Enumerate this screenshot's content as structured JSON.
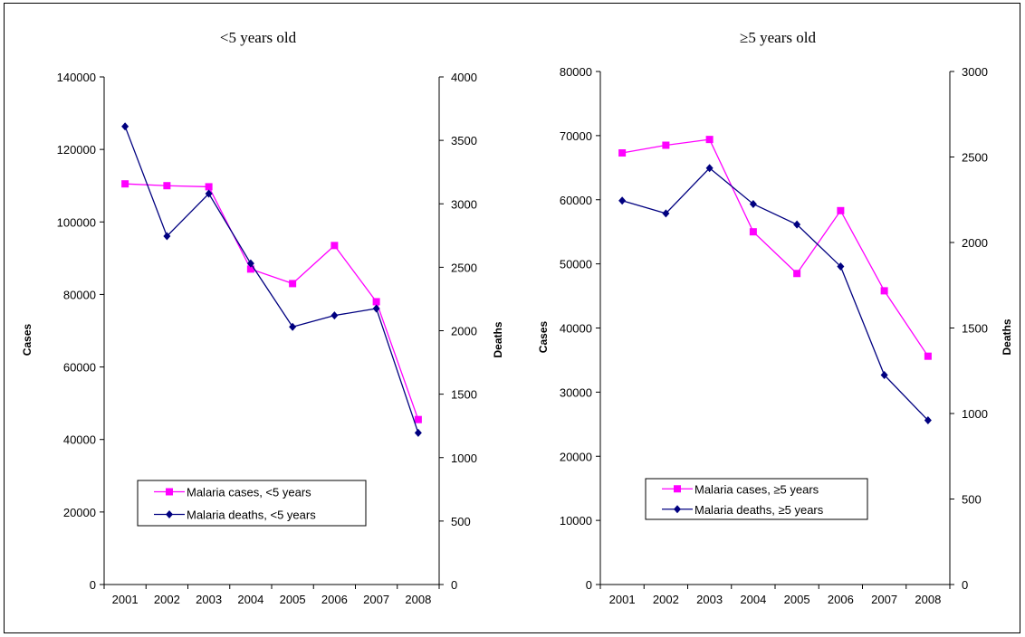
{
  "colors": {
    "cases": "#ff00ff",
    "deaths": "#000080"
  },
  "chart_data": [
    {
      "type": "line",
      "title": "<5 years old",
      "x": [
        "2001",
        "2002",
        "2003",
        "2004",
        "2005",
        "2006",
        "2007",
        "2008"
      ],
      "ylabel": "Cases",
      "y2label": "Deaths",
      "ylim": [
        0,
        140000
      ],
      "y2lim": [
        0,
        4000
      ],
      "yticks": [
        "0",
        "20000",
        "40000",
        "60000",
        "80000",
        "100000",
        "120000",
        "140000"
      ],
      "y2ticks": [
        "0",
        "500",
        "1000",
        "1500",
        "2000",
        "2500",
        "3000",
        "3500",
        "4000"
      ],
      "legend_position": "bottom-left",
      "series": [
        {
          "name": "Malaria cases, <5 years",
          "axis": "left",
          "marker": "square",
          "values": [
            110500,
            110000,
            109700,
            87000,
            83000,
            93500,
            78000,
            45500
          ]
        },
        {
          "name": "Malaria deaths, <5 years",
          "axis": "right",
          "marker": "diamond",
          "values": [
            3610,
            2745,
            3080,
            2530,
            2030,
            2120,
            2175,
            1195
          ]
        }
      ]
    },
    {
      "type": "line",
      "title": "≥5 years old",
      "x": [
        "2001",
        "2002",
        "2003",
        "2004",
        "2005",
        "2006",
        "2007",
        "2008"
      ],
      "ylabel": "Cases",
      "y2label": "Deaths",
      "ylim": [
        0,
        80000
      ],
      "y2lim": [
        0,
        3000
      ],
      "yticks": [
        "0",
        "10000",
        "20000",
        "30000",
        "40000",
        "50000",
        "60000",
        "70000",
        "80000"
      ],
      "y2ticks": [
        "0",
        "500",
        "1000",
        "1500",
        "2000",
        "2500",
        "3000"
      ],
      "legend_position": "bottom-left",
      "series": [
        {
          "name": "Malaria cases, ≥5 years",
          "axis": "left",
          "marker": "square",
          "values": [
            67300,
            68500,
            69400,
            55000,
            48500,
            58300,
            45800,
            35600
          ]
        },
        {
          "name": "Malaria deaths, ≥5 years",
          "axis": "right",
          "marker": "diamond",
          "values": [
            2245,
            2170,
            2435,
            2225,
            2105,
            1860,
            1225,
            960
          ]
        }
      ]
    }
  ]
}
